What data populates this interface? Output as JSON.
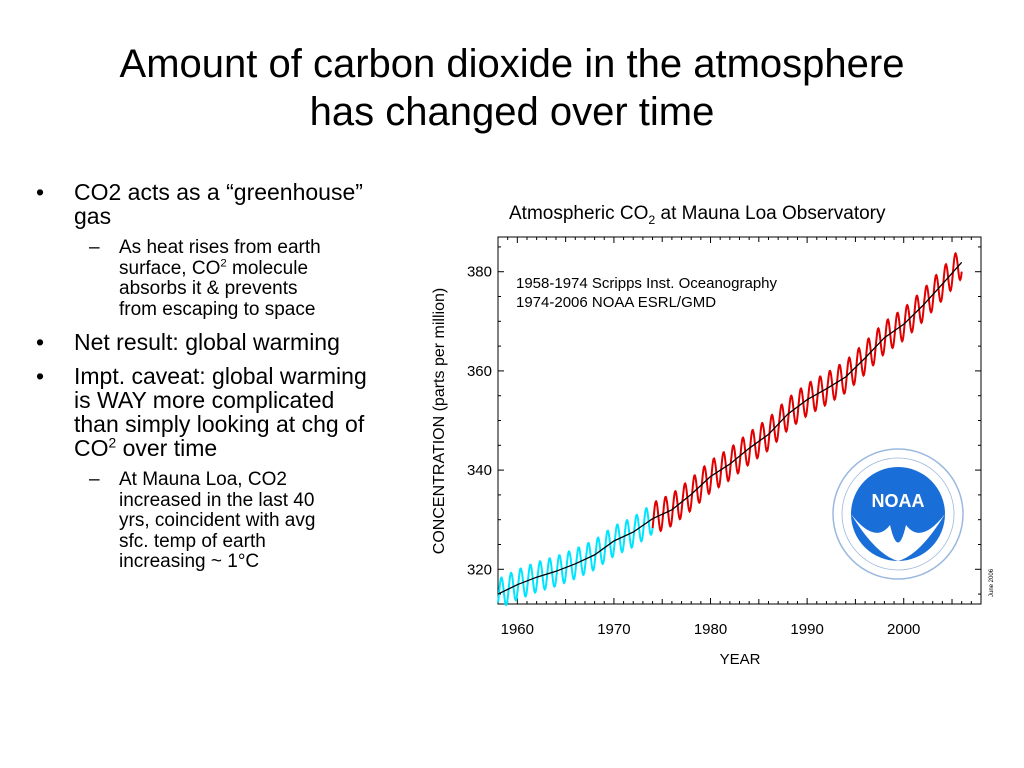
{
  "slide": {
    "title_lines": [
      "Amount of carbon dioxide in the atmosphere",
      "has changed over time"
    ]
  },
  "bullets": {
    "b1": {
      "text": "CO2 acts as a “greenhouse” gas"
    },
    "b1_sub": {
      "part1": "As heat rises from earth",
      "part2": "surface, CO",
      "sup": "2",
      "part3": " molecule",
      "part4": "absorbs it & prevents",
      "part5": "from escaping to space"
    },
    "b2": {
      "text": "Net result: global warming"
    },
    "b3": {
      "part1": "Impt. caveat: global warming is WAY more complicated than simply looking at chg of CO",
      "sup": "2",
      "part2": " over time"
    },
    "b3_sub": {
      "line1": "At Mauna Loa, CO2",
      "line2": "increased in the last 40",
      "line3": "yrs, coincident with avg",
      "line4": "sfc. temp of earth",
      "line5": "increasing ~ 1°C"
    }
  },
  "chart_title": {
    "part1": "Atmospheric CO",
    "sub": "2",
    "part2": " at Mauna Loa Observatory"
  },
  "chart_data": {
    "type": "line",
    "ylabel": "CONCENTRATION (parts per million)",
    "xlabel": "YEAR",
    "xlim": [
      1958,
      2008
    ],
    "ylim": [
      313,
      387
    ],
    "x_ticks": [
      1960,
      1970,
      1980,
      1990,
      2000
    ],
    "y_ticks": [
      320,
      340,
      360,
      380
    ],
    "legend_lines": [
      "1958-1974 Scripps Inst. Oceanography",
      "1974-2006 NOAA ESRL/GMD"
    ],
    "date_note": "June 2006",
    "logo_text": "NOAA",
    "colors": {
      "scripps": "#00e5ff",
      "noaa": "#e00000",
      "trend": "#000000",
      "logo": "#1a6ed8"
    },
    "series": [
      {
        "x": [
          1958,
          1960,
          1962,
          1964,
          1966,
          1968,
          1970,
          1972,
          1974
        ],
        "values": [
          315.0,
          316.9,
          318.4,
          319.6,
          321.1,
          322.9,
          325.7,
          327.5,
          330.2
        ]
      },
      {
        "x": [
          1974,
          1976,
          1978,
          1980,
          1982,
          1984,
          1986,
          1988,
          1990,
          1992,
          1994,
          1996,
          1998,
          2000,
          2002,
          2004,
          2006
        ],
        "values": [
          330.2,
          332.0,
          335.1,
          338.7,
          341.2,
          344.4,
          347.2,
          351.3,
          354.2,
          356.4,
          358.8,
          362.6,
          366.7,
          369.4,
          373.2,
          377.5,
          381.9
        ]
      },
      {
        "x": [
          1958,
          1960,
          1962,
          1964,
          1966,
          1968,
          1970,
          1972,
          1974,
          1976,
          1978,
          1980,
          1982,
          1984,
          1986,
          1988,
          1990,
          1992,
          1994,
          1996,
          1998,
          2000,
          2002,
          2004,
          2006
        ],
        "values": [
          315.0,
          316.9,
          318.4,
          319.6,
          321.1,
          322.9,
          325.7,
          327.5,
          330.2,
          332.0,
          335.1,
          338.7,
          341.2,
          344.4,
          347.2,
          351.3,
          354.2,
          356.4,
          358.8,
          362.6,
          366.7,
          369.4,
          373.2,
          377.5,
          381.9
        ]
      }
    ]
  }
}
